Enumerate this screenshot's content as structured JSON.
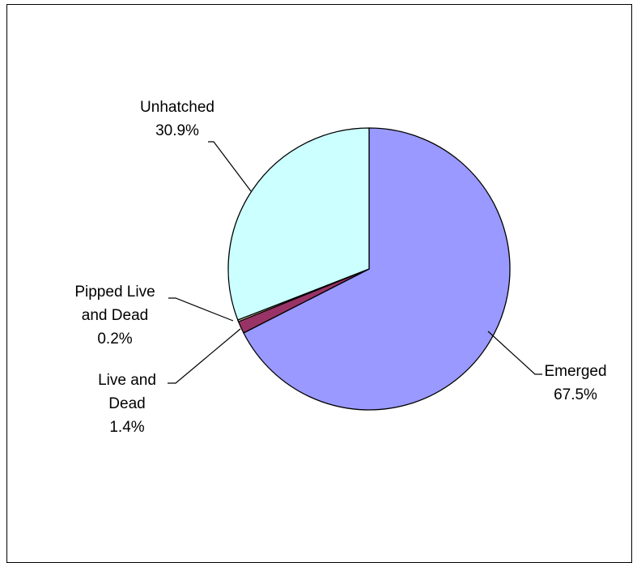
{
  "chart_data": {
    "type": "pie",
    "start_angle_deg": 90,
    "direction": "clockwise",
    "slices": [
      {
        "name": "Emerged",
        "value": 67.5,
        "label_lines": [
          "Emerged",
          "67.5%"
        ],
        "color": "#9999FF"
      },
      {
        "name": "Live and Dead",
        "value": 1.4,
        "label_lines": [
          "Live and",
          "Dead",
          "1.4%"
        ],
        "color": "#993366"
      },
      {
        "name": "Pipped Live and Dead",
        "value": 0.2,
        "label_lines": [
          "Pipped Live",
          "and Dead",
          "0.2%"
        ],
        "color": "#FFFFCC"
      },
      {
        "name": "Unhatched",
        "value": 30.9,
        "label_lines": [
          "Unhatched",
          "30.9%"
        ],
        "color": "#CCFFFF"
      }
    ],
    "title": "",
    "legend": "none"
  }
}
